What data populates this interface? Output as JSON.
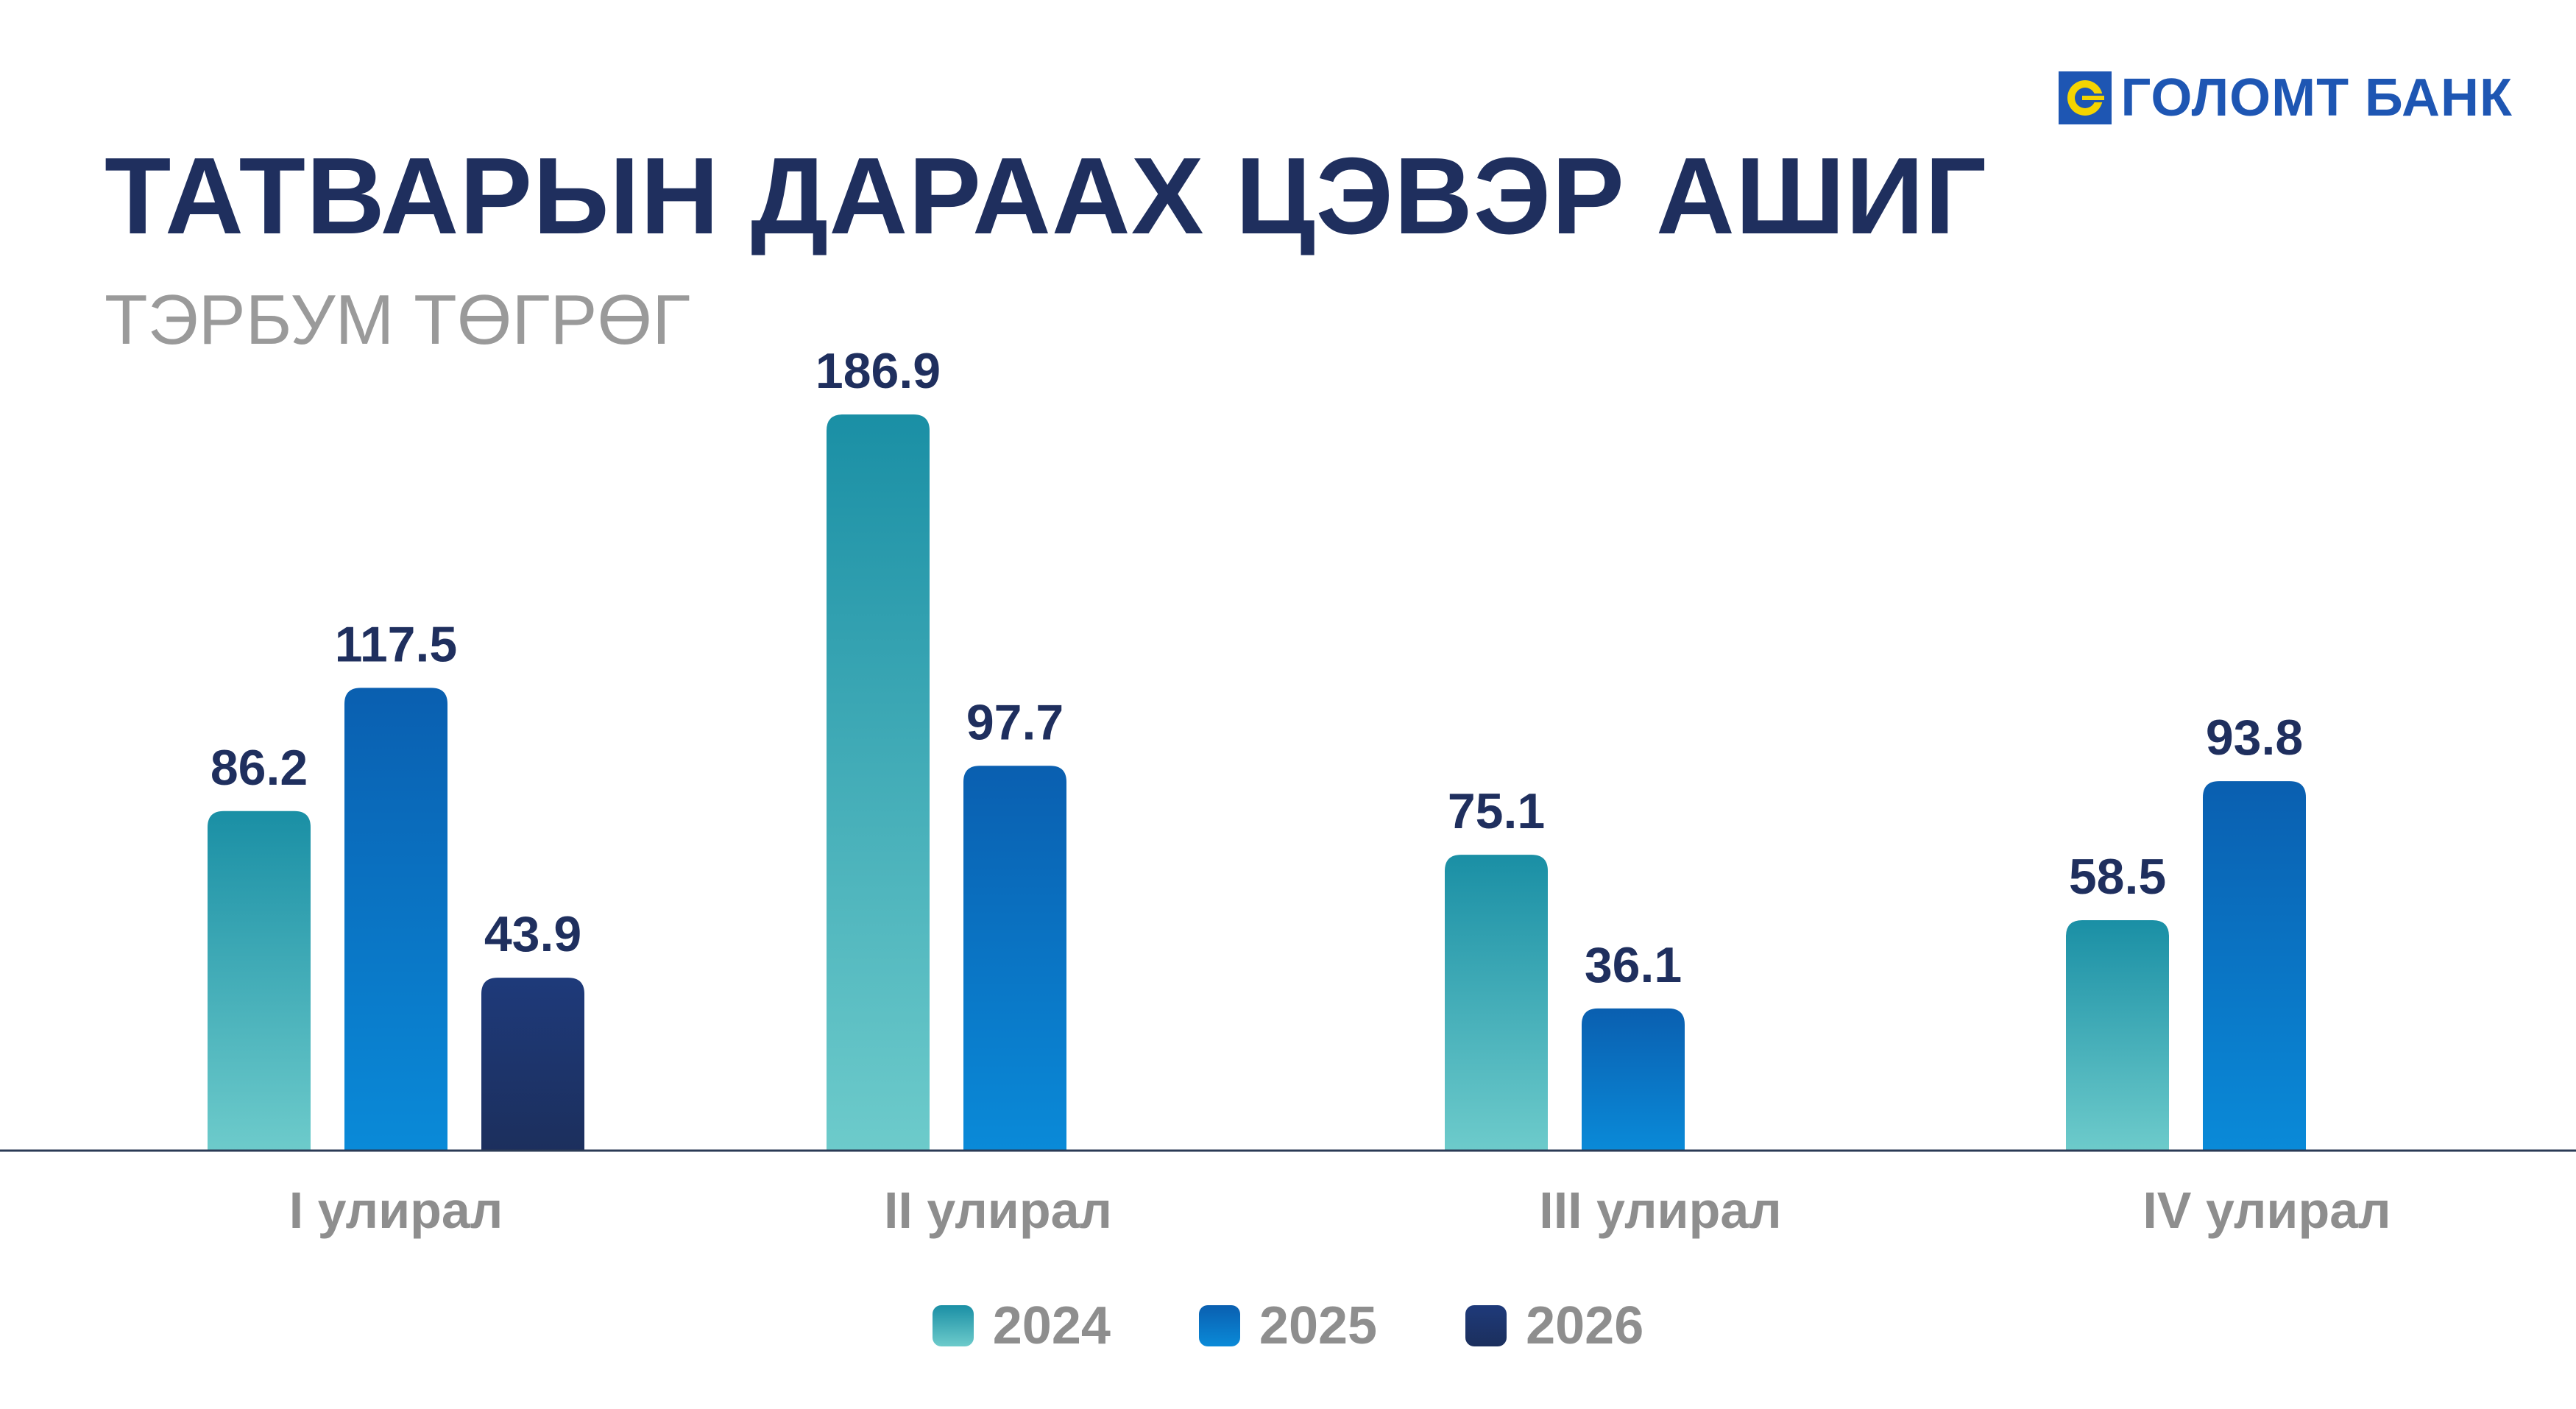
{
  "brand": {
    "name": "ГОЛОМТ БАНК"
  },
  "colors": {
    "title": "#1f2f5e",
    "subtitle": "#9a9a9a",
    "series_2024": [
      "#1a8fa5",
      "#6dcbcb"
    ],
    "series_2025": [
      "#0a5fb0",
      "#0a8ad8"
    ],
    "series_2026": [
      "#1e3a7a",
      "#1c2f5d"
    ],
    "label": "#1f2f5e",
    "axis_label": "#8e8e8e",
    "logo": "#1e56b3",
    "logo_accent": "#f4d400"
  },
  "chart_data": {
    "type": "bar",
    "title": "ТАТВАРЫН ДАРААХ ЦЭВЭР АШИГ",
    "subtitle": "ТЭРБУМ ТӨГРӨГ",
    "categories": [
      "I улирал",
      "II улирал",
      "III улирал",
      "IV улирал"
    ],
    "series": [
      {
        "name": "2024",
        "values": [
          86.2,
          186.9,
          75.1,
          58.5
        ]
      },
      {
        "name": "2025",
        "values": [
          117.5,
          97.7,
          36.1,
          93.8
        ]
      },
      {
        "name": "2026",
        "values": [
          43.9,
          null,
          null,
          null
        ]
      }
    ],
    "ylim": [
      0,
      186.9
    ],
    "grid": false,
    "legend_position": "bottom-center",
    "data_labels": true
  }
}
